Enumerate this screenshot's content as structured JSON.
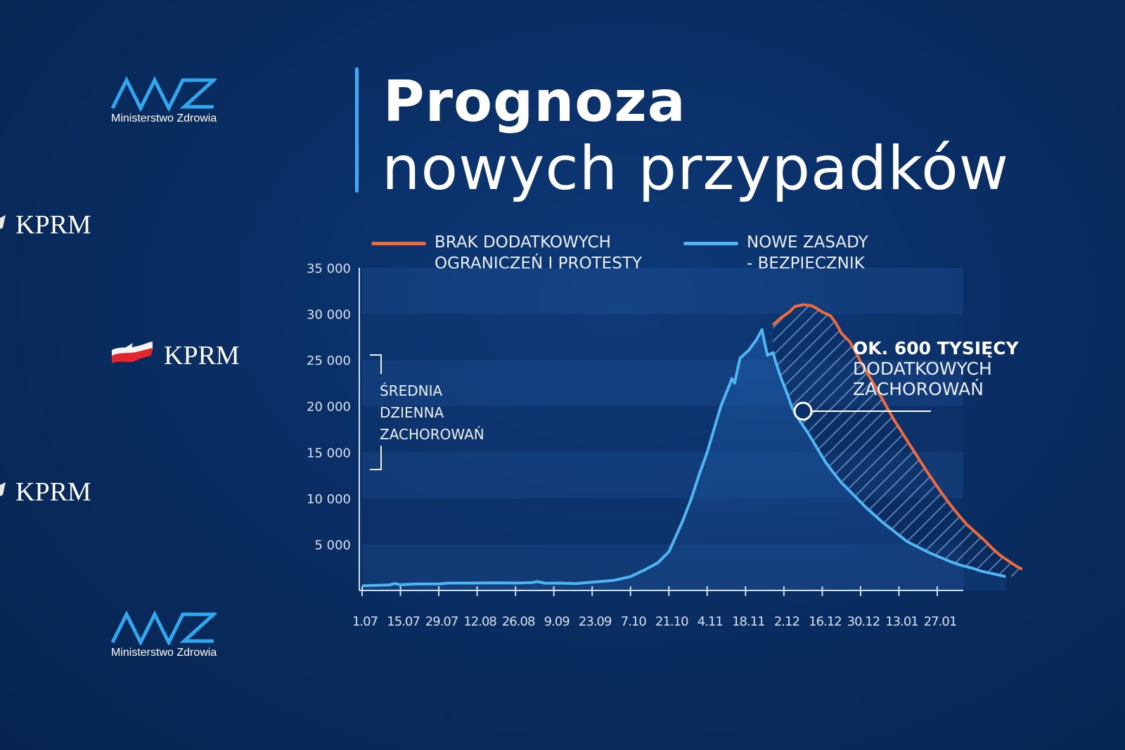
{
  "logos": {
    "mz_caption": "Ministerstwo Zdrowia",
    "kprm_label": "KPRM"
  },
  "title": {
    "line1": "Prognoza",
    "line2": "nowych przypadków"
  },
  "legend": {
    "orange": {
      "line1": "BRAK DODATKOWYCH",
      "line2": "OGRANICZEŃ I PROTESTY",
      "color": "#f06a3c"
    },
    "blue": {
      "line1": "NOWE ZASADY",
      "line2": "- BEZPIECZNIK",
      "color": "#4fb6f2"
    }
  },
  "ylabel": {
    "line1": "ŚREDNIA",
    "line2": "DZIENNA",
    "line3": "ZACHOROWAŃ"
  },
  "annotation": {
    "line1": "OK. 600 TYSIĘCY",
    "line2": "DODATKOWYCH",
    "line3": "ZACHOROWAŃ"
  },
  "chart_data": {
    "type": "line",
    "ylim": [
      0,
      35000
    ],
    "yticks": [
      "35 000",
      "30 000",
      "25 000",
      "20 000",
      "15 000",
      "10 000",
      "5 000"
    ],
    "ytick_values": [
      35000,
      30000,
      25000,
      20000,
      15000,
      10000,
      5000
    ],
    "xticks": [
      "1.07",
      "15.07",
      "29.07",
      "12.08",
      "26.08",
      "9.09",
      "23.09",
      "7.10",
      "21.10",
      "4.11",
      "18.11",
      "2.12",
      "16.12",
      "30.12",
      "13.01",
      "27.01"
    ],
    "xlim_days": [
      0,
      224
    ],
    "series": [
      {
        "name": "NOWE ZASADY - BEZPIECZNIK",
        "color": "#4fb6f2",
        "points": [
          [
            0,
            500
          ],
          [
            5,
            550
          ],
          [
            10,
            600
          ],
          [
            12,
            750
          ],
          [
            14,
            620
          ],
          [
            20,
            700
          ],
          [
            28,
            700
          ],
          [
            32,
            800
          ],
          [
            40,
            800
          ],
          [
            50,
            820
          ],
          [
            56,
            800
          ],
          [
            62,
            850
          ],
          [
            64,
            950
          ],
          [
            67,
            780
          ],
          [
            72,
            800
          ],
          [
            78,
            750
          ],
          [
            84,
            900
          ],
          [
            92,
            1100
          ],
          [
            98,
            1500
          ],
          [
            103,
            2200
          ],
          [
            108,
            3000
          ],
          [
            112,
            4200
          ],
          [
            114,
            5500
          ],
          [
            117,
            7500
          ],
          [
            120,
            9800
          ],
          [
            123,
            12500
          ],
          [
            126,
            15000
          ],
          [
            128,
            17000
          ],
          [
            131,
            20000
          ],
          [
            134,
            22200
          ],
          [
            135,
            23000
          ],
          [
            136,
            22500
          ],
          [
            138,
            25200
          ],
          [
            141,
            26000
          ],
          [
            144,
            27200
          ],
          [
            146,
            28300
          ],
          [
            147,
            26800
          ],
          [
            148,
            25500
          ],
          [
            150,
            25800
          ],
          [
            151,
            24800
          ],
          [
            153,
            23000
          ],
          [
            155,
            21500
          ],
          [
            157,
            19800
          ],
          [
            160,
            18300
          ],
          [
            163,
            17000
          ],
          [
            166,
            15500
          ],
          [
            169,
            14000
          ],
          [
            172,
            12800
          ],
          [
            175,
            11700
          ],
          [
            178,
            10800
          ],
          [
            181,
            9900
          ],
          [
            184,
            9000
          ],
          [
            187,
            8200
          ],
          [
            190,
            7400
          ],
          [
            193,
            6700
          ],
          [
            196,
            6000
          ],
          [
            199,
            5300
          ],
          [
            203,
            4700
          ],
          [
            207,
            4100
          ],
          [
            211,
            3600
          ],
          [
            215,
            3100
          ],
          [
            219,
            2700
          ],
          [
            223,
            2400
          ],
          [
            226,
            2100
          ],
          [
            229,
            1900
          ],
          [
            232,
            1700
          ],
          [
            235,
            1500
          ]
        ]
      },
      {
        "name": "BRAK DODATKOWYCH OGRANICZEŃ I PROTESTY",
        "color": "#f06a3c",
        "points": [
          [
            150,
            28800
          ],
          [
            153,
            29600
          ],
          [
            156,
            30200
          ],
          [
            158,
            30800
          ],
          [
            161,
            31000
          ],
          [
            164,
            30900
          ],
          [
            166,
            30600
          ],
          [
            168,
            30200
          ],
          [
            171,
            29800
          ],
          [
            173,
            29000
          ],
          [
            175,
            27900
          ],
          [
            178,
            27000
          ],
          [
            180,
            26000
          ],
          [
            182,
            24800
          ],
          [
            185,
            23300
          ],
          [
            188,
            21800
          ],
          [
            191,
            20200
          ],
          [
            194,
            18600
          ],
          [
            197,
            17200
          ],
          [
            200,
            15800
          ],
          [
            203,
            14400
          ],
          [
            206,
            13000
          ],
          [
            209,
            11700
          ],
          [
            212,
            10400
          ],
          [
            215,
            9200
          ],
          [
            218,
            8100
          ],
          [
            221,
            7100
          ],
          [
            224,
            6300
          ],
          [
            227,
            5500
          ],
          [
            230,
            4600
          ],
          [
            233,
            3800
          ],
          [
            236,
            3200
          ],
          [
            239,
            2600
          ],
          [
            241,
            2300
          ]
        ]
      }
    ]
  }
}
